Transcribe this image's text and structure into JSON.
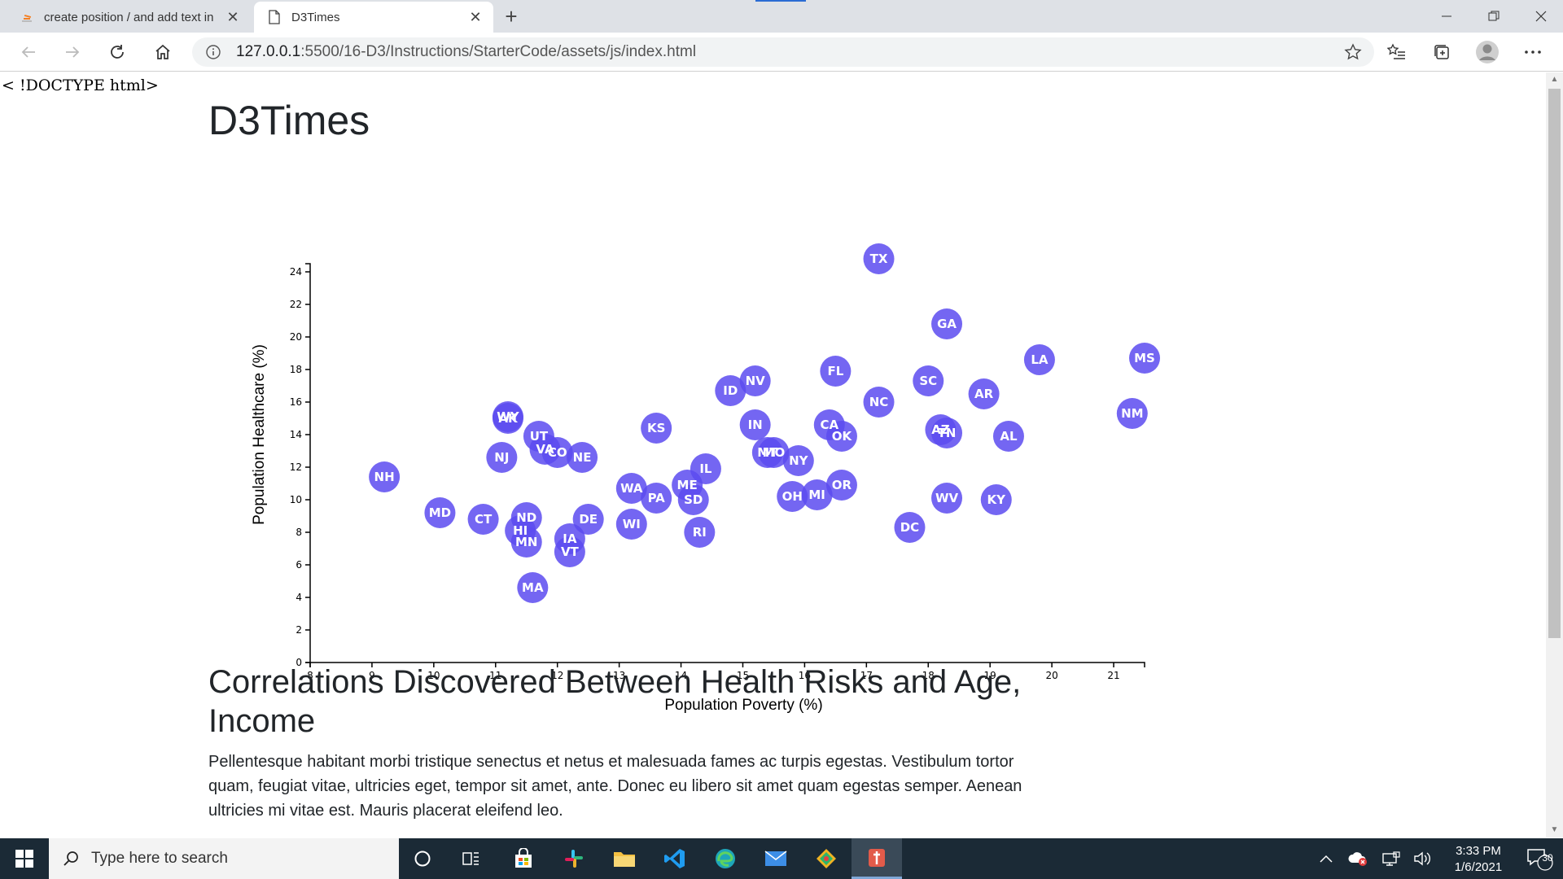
{
  "browser": {
    "tabs": [
      {
        "title": "create position / and add text in",
        "active": false
      },
      {
        "title": "D3Times",
        "active": true
      }
    ],
    "url_host": "127.0.0.1",
    "url_path": ":5500/16-D3/Instructions/StarterCode/assets/js/index.html"
  },
  "page": {
    "doctype_text": "< !DOCTYPE html>",
    "heading": "D3Times",
    "section_heading": "Correlations Discovered Between Health Risks and Age, Income",
    "paragraph": "Pellentesque habitant morbi tristique senectus et netus et malesuada fames ac turpis egestas. Vestibulum tortor quam, feugiat vitae, ultricies eget, tempor sit amet, ante. Donec eu libero sit amet quam egestas semper. Aenean ultricies mi vitae est. Mauris placerat eleifend leo."
  },
  "chart_data": {
    "type": "scatter",
    "xlabel": "Population Poverty (%)",
    "ylabel": "Population Healthcare (%)",
    "xlim": [
      8,
      21.5
    ],
    "ylim": [
      0,
      25
    ],
    "x_ticks": [
      8,
      9,
      10,
      11,
      12,
      13,
      14,
      15,
      16,
      17,
      18,
      19,
      20,
      21
    ],
    "y_ticks": [
      0,
      2,
      4,
      6,
      8,
      10,
      12,
      14,
      16,
      18,
      20,
      22,
      24
    ],
    "color": "#5c4bf0",
    "points": [
      {
        "abbr": "TX",
        "x": 17.2,
        "y": 24.8
      },
      {
        "abbr": "GA",
        "x": 18.3,
        "y": 20.8
      },
      {
        "abbr": "LA",
        "x": 19.8,
        "y": 18.6
      },
      {
        "abbr": "MS",
        "x": 21.5,
        "y": 18.7
      },
      {
        "abbr": "FL",
        "x": 16.5,
        "y": 17.9
      },
      {
        "abbr": "SC",
        "x": 18.0,
        "y": 17.3
      },
      {
        "abbr": "NV",
        "x": 15.2,
        "y": 17.3
      },
      {
        "abbr": "ID",
        "x": 14.8,
        "y": 16.7
      },
      {
        "abbr": "AR",
        "x": 18.9,
        "y": 16.5
      },
      {
        "abbr": "NC",
        "x": 17.2,
        "y": 16.0
      },
      {
        "abbr": "NM",
        "x": 21.3,
        "y": 15.3
      },
      {
        "abbr": "WY",
        "x": 11.2,
        "y": 15.1
      },
      {
        "abbr": "AK",
        "x": 11.2,
        "y": 15.0
      },
      {
        "abbr": "KS",
        "x": 13.6,
        "y": 14.4
      },
      {
        "abbr": "IN",
        "x": 15.2,
        "y": 14.6
      },
      {
        "abbr": "CA",
        "x": 16.4,
        "y": 14.6
      },
      {
        "abbr": "AZ",
        "x": 18.2,
        "y": 14.3
      },
      {
        "abbr": "TN",
        "x": 18.3,
        "y": 14.1
      },
      {
        "abbr": "OK",
        "x": 16.6,
        "y": 13.9
      },
      {
        "abbr": "AL",
        "x": 19.3,
        "y": 13.9
      },
      {
        "abbr": "UT",
        "x": 11.7,
        "y": 13.9
      },
      {
        "abbr": "VA",
        "x": 11.8,
        "y": 13.1
      },
      {
        "abbr": "CO",
        "x": 12.0,
        "y": 12.9
      },
      {
        "abbr": "NE",
        "x": 12.4,
        "y": 12.6
      },
      {
        "abbr": "NJ",
        "x": 11.1,
        "y": 12.6
      },
      {
        "abbr": "MT",
        "x": 15.4,
        "y": 12.9
      },
      {
        "abbr": "MO",
        "x": 15.5,
        "y": 12.9
      },
      {
        "abbr": "NY",
        "x": 15.9,
        "y": 12.4
      },
      {
        "abbr": "IL",
        "x": 14.4,
        "y": 11.9
      },
      {
        "abbr": "NH",
        "x": 9.2,
        "y": 11.4
      },
      {
        "abbr": "WA",
        "x": 13.2,
        "y": 10.7
      },
      {
        "abbr": "ME",
        "x": 14.1,
        "y": 10.9
      },
      {
        "abbr": "OR",
        "x": 16.6,
        "y": 10.9
      },
      {
        "abbr": "PA",
        "x": 13.6,
        "y": 10.1
      },
      {
        "abbr": "SD",
        "x": 14.2,
        "y": 10.0
      },
      {
        "abbr": "OH",
        "x": 15.8,
        "y": 10.2
      },
      {
        "abbr": "MI",
        "x": 16.2,
        "y": 10.3
      },
      {
        "abbr": "WV",
        "x": 18.3,
        "y": 10.1
      },
      {
        "abbr": "KY",
        "x": 19.1,
        "y": 10.0
      },
      {
        "abbr": "MD",
        "x": 10.1,
        "y": 9.2
      },
      {
        "abbr": "CT",
        "x": 10.8,
        "y": 8.8
      },
      {
        "abbr": "ND",
        "x": 11.5,
        "y": 8.9
      },
      {
        "abbr": "DE",
        "x": 12.5,
        "y": 8.8
      },
      {
        "abbr": "WI",
        "x": 13.2,
        "y": 8.5
      },
      {
        "abbr": "HI",
        "x": 11.4,
        "y": 8.1
      },
      {
        "abbr": "DC",
        "x": 17.7,
        "y": 8.3
      },
      {
        "abbr": "RI",
        "x": 14.3,
        "y": 8.0
      },
      {
        "abbr": "IA",
        "x": 12.2,
        "y": 7.6
      },
      {
        "abbr": "MN",
        "x": 11.5,
        "y": 7.4
      },
      {
        "abbr": "VT",
        "x": 12.2,
        "y": 6.8
      },
      {
        "abbr": "MA",
        "x": 11.6,
        "y": 4.6
      }
    ]
  },
  "taskbar": {
    "search_placeholder": "Type here to search",
    "time": "3:33 PM",
    "date": "1/6/2021",
    "notification_count": "30"
  }
}
